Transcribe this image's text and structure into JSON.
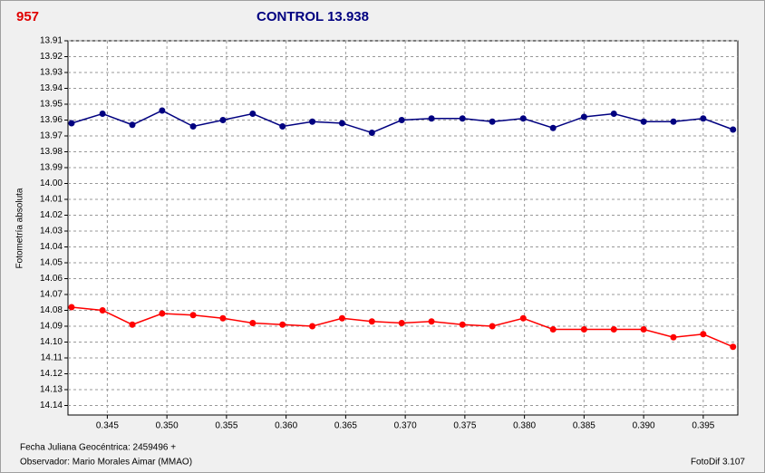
{
  "chart_data": {
    "type": "line",
    "label_left": "957",
    "label_left_color": "#e00000",
    "title": "CONTROL 13.938",
    "title_color": "#000080",
    "y_label": "Fotometría absoluta",
    "footer_left": [
      "Fecha Juliana Geocéntrica: 2459496 +",
      "Observador: Mario Morales Aimar (MMAO)"
    ],
    "footer_right": "FotoDif 3.107",
    "x": [
      0.342,
      0.3446,
      0.3471,
      0.3496,
      0.3522,
      0.3547,
      0.3572,
      0.3597,
      0.3622,
      0.3647,
      0.3672,
      0.3697,
      0.3722,
      0.3748,
      0.3773,
      0.3799,
      0.3824,
      0.385,
      0.3875,
      0.39,
      0.3925,
      0.395,
      0.3975
    ],
    "series": [
      {
        "color": "#000080",
        "values": [
          13.962,
          13.956,
          13.963,
          13.954,
          13.964,
          13.96,
          13.956,
          13.964,
          13.961,
          13.962,
          13.968,
          13.96,
          13.959,
          13.959,
          13.961,
          13.959,
          13.965,
          13.958,
          13.956,
          13.961,
          13.961,
          13.959,
          13.966
        ]
      },
      {
        "color": "#ff0000",
        "values": [
          14.078,
          14.08,
          14.089,
          14.082,
          14.083,
          14.085,
          14.088,
          14.089,
          14.09,
          14.085,
          14.087,
          14.088,
          14.087,
          14.089,
          14.09,
          14.085,
          14.092,
          14.092,
          14.092,
          14.092,
          14.097,
          14.095,
          14.103
        ]
      }
    ],
    "xlim": [
      0.3417,
      0.3979
    ],
    "xticks": [
      0.345,
      {
        "value": 0.35,
        "label": "0.350"
      },
      0.355,
      {
        "value": 0.36,
        "label": "0.360"
      },
      0.365,
      {
        "value": 0.37,
        "label": "0.370"
      },
      0.375,
      {
        "value": 0.38,
        "label": "0.380"
      },
      0.385,
      {
        "value": 0.39,
        "label": "0.390"
      },
      0.395
    ],
    "ylim": [
      13.91,
      14.146
    ],
    "y_inverted": true,
    "yticks": [
      13.91,
      13.92,
      13.93,
      13.94,
      13.95,
      13.96,
      13.97,
      13.98,
      13.99,
      {
        "value": 14,
        "label": "14.00"
      },
      14.01,
      14.02,
      14.03,
      14.04,
      14.05,
      14.06,
      14.07,
      14.08,
      14.09,
      {
        "value": 14.1,
        "label": "14.10"
      },
      14.11,
      14.12,
      14.13,
      14.14
    ],
    "grid": true
  }
}
